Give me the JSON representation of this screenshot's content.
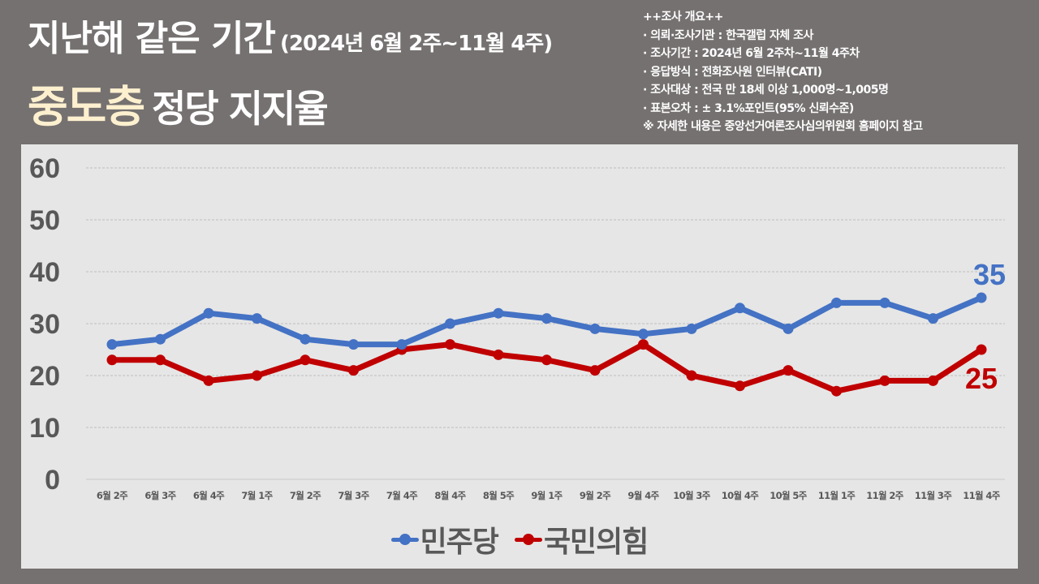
{
  "header": {
    "title_main": "지난해 같은 기간",
    "title_period": "(2024년 6월 2주~11월 4주)",
    "subtitle_highlight": "중도층",
    "subtitle_rest": "정당 지지율"
  },
  "survey_info": {
    "heading": "++조사 개요++",
    "lines": [
      "· 의뢰·조사기관 : 한국갤럽 자체 조사",
      "· 조사기간 : 2024년 6월 2주차~11월 4주차",
      "· 응답방식 : 전화조사원 인터뷰(CATI)",
      "· 조사대상 : 전국 만 18세 이상 1,000명~1,005명",
      "· 표본오차 :  ± 3.1%포인트(95% 신뢰수준)"
    ],
    "note": "※ 자세한 내용은 중앙선거여론조사심의위원회 홈페이지 참고"
  },
  "colors": {
    "background": "#757170",
    "panel": "#e6e6e6",
    "highlight_text": "#fdf0cf",
    "democratic": "#4472c4",
    "ppp": "#c00000",
    "axis_text": "#585858",
    "grid": "#bdbdbd"
  },
  "legend": {
    "items": [
      {
        "label": "민주당",
        "color": "#4472c4"
      },
      {
        "label": "국민의힘",
        "color": "#c00000"
      }
    ]
  },
  "end_labels": {
    "democratic": "35",
    "ppp": "25"
  },
  "chart_data": {
    "type": "line",
    "title": "지난해 같은 기간 (2024년 6월 2주~11월 4주) 중도층 정당 지지율",
    "xlabel": "",
    "ylabel": "",
    "ylim": [
      0,
      60
    ],
    "yticks": [
      0,
      10,
      20,
      30,
      40,
      50,
      60
    ],
    "grid": true,
    "legend_position": "bottom",
    "categories": [
      "6월 2주",
      "6월 3주",
      "6월 4주",
      "7월 1주",
      "7월 2주",
      "7월 3주",
      "7월 4주",
      "8월 4주",
      "8월 5주",
      "9월 1주",
      "9월 2주",
      "9월 4주",
      "10월 3주",
      "10월 4주",
      "10월 5주",
      "11월 1주",
      "11월 2주",
      "11월 3주",
      "11월 4주"
    ],
    "series": [
      {
        "name": "민주당",
        "color": "#4472c4",
        "values": [
          26,
          27,
          32,
          31,
          27,
          26,
          26,
          30,
          32,
          31,
          29,
          28,
          29,
          33,
          29,
          34,
          34,
          31,
          35
        ]
      },
      {
        "name": "국민의힘",
        "color": "#c00000",
        "values": [
          23,
          23,
          19,
          20,
          23,
          21,
          25,
          26,
          24,
          23,
          21,
          26,
          20,
          18,
          21,
          17,
          19,
          19,
          25
        ]
      }
    ],
    "annotations": [
      {
        "series": "민주당",
        "category": "11월 4주",
        "text": "35"
      },
      {
        "series": "국민의힘",
        "category": "11월 4주",
        "text": "25"
      }
    ]
  }
}
